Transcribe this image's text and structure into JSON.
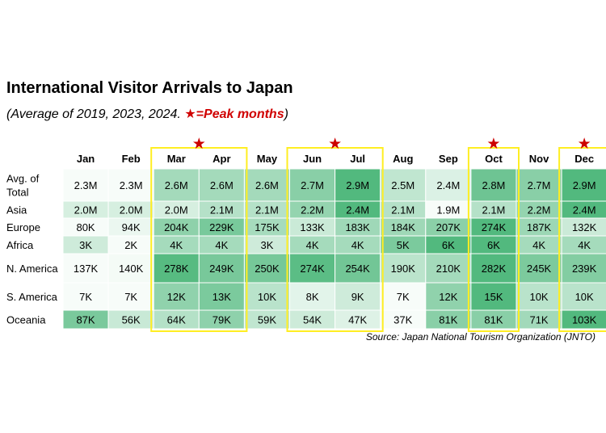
{
  "title": "International Visitor Arrivals to Japan",
  "subtitle": {
    "prefix": "(Average of 2019, 2023, 2024. ",
    "peak_label": "★=Peak months",
    "suffix": ")"
  },
  "source": "Source: Japan National Tourism Organization (JNTO)",
  "colors": {
    "low": "#f7fcf9",
    "high": "#52b97e",
    "highlight_border": "#ffee22",
    "star": "#cc0000"
  },
  "chart_data": {
    "type": "heatmap",
    "columns": [
      "Jan",
      "Feb",
      "Mar",
      "Apr",
      "May",
      "Jun",
      "Jul",
      "Aug",
      "Sep",
      "Oct",
      "Nov",
      "Dec"
    ],
    "peak_months": [
      "Mar",
      "Apr",
      "Jun",
      "Jul",
      "Oct",
      "Dec"
    ],
    "peak_marker": "★",
    "rows": [
      {
        "label": "Avg. of Total",
        "values": [
          2.3,
          2.3,
          2.6,
          2.6,
          2.6,
          2.7,
          2.9,
          2.5,
          2.4,
          2.8,
          2.7,
          2.9
        ],
        "labels": [
          "2.3M",
          "2.3M",
          "2.6M",
          "2.6M",
          "2.6M",
          "2.7M",
          "2.9M",
          "2.5M",
          "2.4M",
          "2.8M",
          "2.7M",
          "2.9M"
        ]
      },
      {
        "label": "Asia",
        "values": [
          2.0,
          2.0,
          2.0,
          2.1,
          2.1,
          2.2,
          2.4,
          2.1,
          1.9,
          2.1,
          2.2,
          2.4
        ],
        "labels": [
          "2.0M",
          "2.0M",
          "2.0M",
          "2.1M",
          "2.1M",
          "2.2M",
          "2.4M",
          "2.1M",
          "1.9M",
          "2.1M",
          "2.2M",
          "2.4M"
        ]
      },
      {
        "label": "Europe",
        "values": [
          80,
          94,
          204,
          229,
          175,
          133,
          183,
          184,
          207,
          274,
          187,
          132
        ],
        "labels": [
          "80K",
          "94K",
          "204K",
          "229K",
          "175K",
          "133K",
          "183K",
          "184K",
          "207K",
          "274K",
          "187K",
          "132K"
        ]
      },
      {
        "label": "Africa",
        "values": [
          3,
          2,
          4,
          4,
          3,
          4,
          4,
          5,
          6,
          6,
          4,
          4
        ],
        "labels": [
          "3K",
          "2K",
          "4K",
          "4K",
          "3K",
          "4K",
          "4K",
          "5K",
          "6K",
          "6K",
          "4K",
          "4K"
        ]
      },
      {
        "label": "N. America",
        "values": [
          137,
          140,
          278,
          249,
          250,
          274,
          254,
          190,
          210,
          282,
          245,
          239
        ],
        "labels": [
          "137K",
          "140K",
          "278K",
          "249K",
          "250K",
          "274K",
          "254K",
          "190K",
          "210K",
          "282K",
          "245K",
          "239K"
        ]
      },
      {
        "label": "S. America",
        "values": [
          7,
          7,
          12,
          13,
          10,
          8,
          9,
          7,
          12,
          15,
          10,
          10
        ],
        "labels": [
          "7K",
          "7K",
          "12K",
          "13K",
          "10K",
          "8K",
          "9K",
          "7K",
          "12K",
          "15K",
          "10K",
          "10K"
        ]
      },
      {
        "label": "Oceania",
        "values": [
          87,
          56,
          64,
          79,
          59,
          54,
          47,
          37,
          81,
          81,
          71,
          103
        ],
        "labels": [
          "87K",
          "56K",
          "64K",
          "79K",
          "59K",
          "54K",
          "47K",
          "37K",
          "81K",
          "81K",
          "71K",
          "103K"
        ]
      }
    ]
  }
}
